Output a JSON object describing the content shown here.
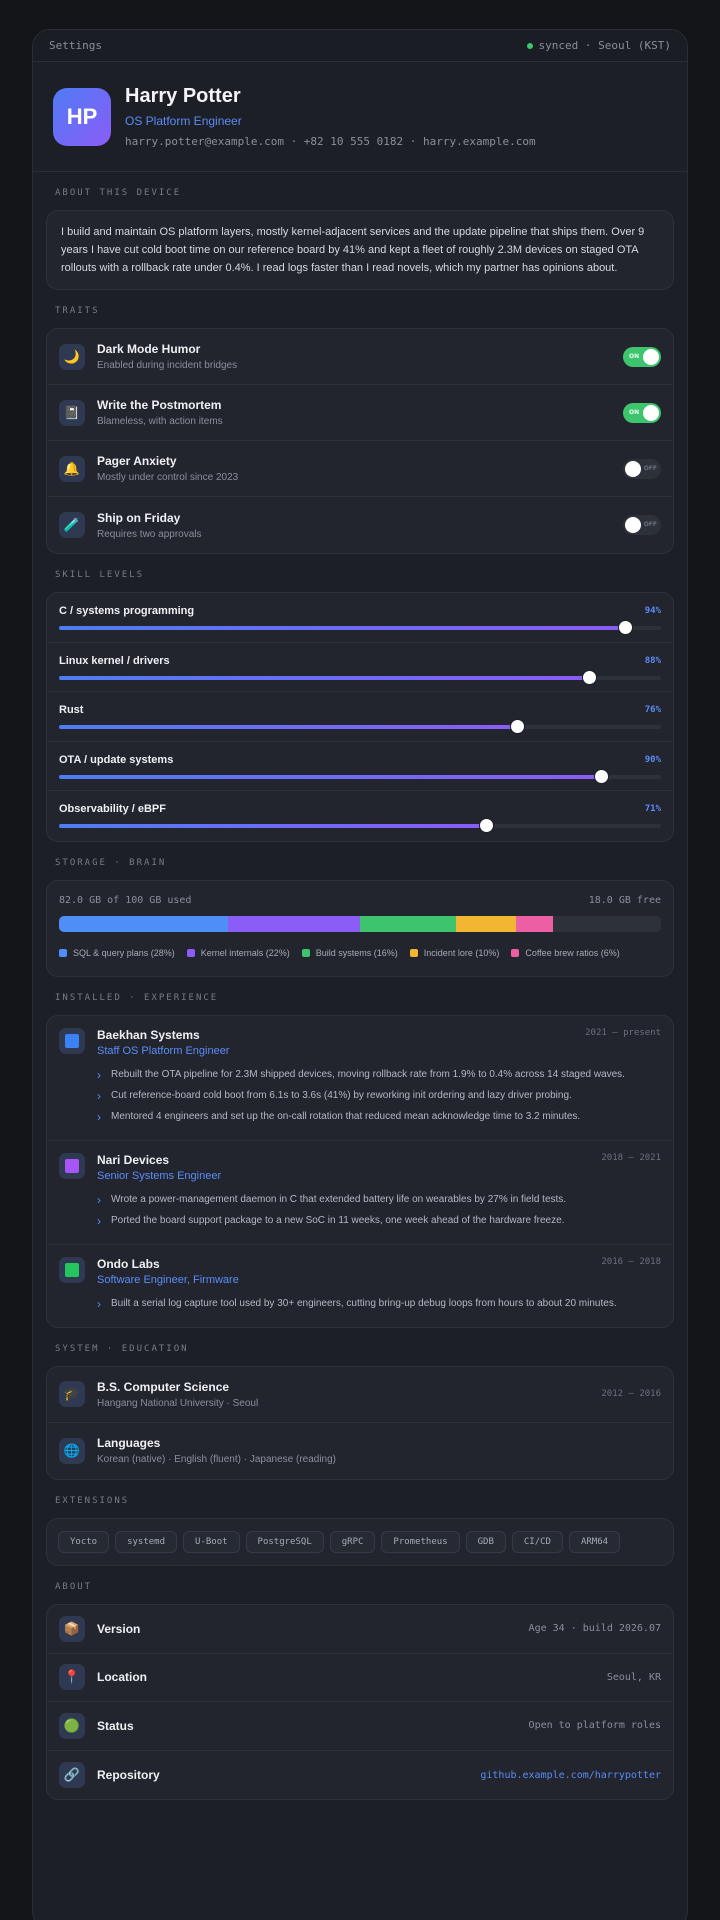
{
  "titlebar": {
    "title": "Settings",
    "status": "synced · Seoul (KST)"
  },
  "profile": {
    "initials": "HP",
    "name": "Harry Potter",
    "role": "OS Platform Engineer",
    "contact": "harry.potter@example.com · +82 10 555 0182 · harry.example.com"
  },
  "about_device": {
    "label": "ABOUT THIS DEVICE",
    "text": "I build and maintain OS platform layers, mostly kernel-adjacent services and the update pipeline that ships them. Over 9 years I have cut cold boot time on our reference board by 41% and kept a fleet of roughly 2.3M devices on staged OTA rollouts with a rollback rate under 0.4%. I read logs faster than I read novels, which my partner has opinions about."
  },
  "traits": {
    "label": "TRAITS",
    "items": [
      {
        "icon": "moon-icon",
        "glyph": "🌙",
        "title": "Dark Mode Humor",
        "sub": "Enabled during incident bridges",
        "on": true,
        "state": "ON"
      },
      {
        "icon": "notebook-icon",
        "glyph": "📓",
        "title": "Write the Postmortem",
        "sub": "Blameless, with action items",
        "on": true,
        "state": "ON"
      },
      {
        "icon": "bell-icon",
        "glyph": "🔔",
        "title": "Pager Anxiety",
        "sub": "Mostly under control since 2023",
        "on": false,
        "state": "OFF"
      },
      {
        "icon": "syringe-icon",
        "glyph": "🧪",
        "title": "Ship on Friday",
        "sub": "Requires two approvals",
        "on": false,
        "state": "OFF"
      }
    ]
  },
  "skills": {
    "label": "SKILL LEVELS",
    "items": [
      {
        "name": "C / systems programming",
        "value": 94,
        "pct": "94%"
      },
      {
        "name": "Linux kernel / drivers",
        "value": 88,
        "pct": "88%"
      },
      {
        "name": "Rust",
        "value": 76,
        "pct": "76%"
      },
      {
        "name": "OTA / update systems",
        "value": 90,
        "pct": "90%"
      },
      {
        "name": "Observability / eBPF",
        "value": 71,
        "pct": "71%"
      }
    ]
  },
  "storage": {
    "label": "STORAGE · BRAIN",
    "used": "82.0 GB of 100 GB used",
    "free": "18.0 GB free",
    "segments": [
      {
        "label": "SQL & query plans (28%)",
        "value": 28,
        "color": "#4f8ef7"
      },
      {
        "label": "Kernel internals (22%)",
        "value": 22,
        "color": "#8b5cf6"
      },
      {
        "label": "Build systems (16%)",
        "value": 16,
        "color": "#3ec46d"
      },
      {
        "label": "Incident lore (10%)",
        "value": 10,
        "color": "#f2b632"
      },
      {
        "label": "Coffee brew ratios (6%)",
        "value": 6,
        "color": "#ec5fa5"
      }
    ]
  },
  "experience": {
    "label": "INSTALLED · EXPERIENCE",
    "jobs": [
      {
        "icon": "blue-square-icon",
        "color": "#3b82f6",
        "company": "Baekhan Systems",
        "dates": "2021 – present",
        "role": "Staff OS Platform Engineer",
        "bullets": [
          "Rebuilt the OTA pipeline for 2.3M shipped devices, moving rollback rate from 1.9% to 0.4% across 14 staged waves.",
          "Cut reference-board cold boot from 6.1s to 3.6s (41%) by reworking init ordering and lazy driver probing.",
          "Mentored 4 engineers and set up the on-call rotation that reduced mean acknowledge time to 3.2 minutes."
        ]
      },
      {
        "icon": "purple-square-icon",
        "color": "#a855f7",
        "company": "Nari Devices",
        "dates": "2018 – 2021",
        "role": "Senior Systems Engineer",
        "bullets": [
          "Wrote a power-management daemon in C that extended battery life on wearables by 27% in field tests.",
          "Ported the board support package to a new SoC in 11 weeks, one week ahead of the hardware freeze."
        ]
      },
      {
        "icon": "green-square-icon",
        "color": "#22c55e",
        "company": "Ondo Labs",
        "dates": "2016 – 2018",
        "role": "Software Engineer, Firmware",
        "bullets": [
          "Built a serial log capture tool used by 30+ engineers, cutting bring-up debug loops from hours to about 20 minutes."
        ]
      }
    ]
  },
  "education": {
    "label": "SYSTEM · EDUCATION",
    "items": [
      {
        "icon": "graduation-cap-icon",
        "glyph": "🎓",
        "title": "B.S. Computer Science",
        "sub": "Hangang National University · Seoul",
        "dates": "2012 – 2016"
      },
      {
        "icon": "globe-icon",
        "glyph": "🌐",
        "title": "Languages",
        "sub": "Korean (native) · English (fluent) · Japanese (reading)",
        "dates": ""
      }
    ]
  },
  "extensions": {
    "label": "EXTENSIONS",
    "chips": [
      "Yocto",
      "systemd",
      "U-Boot",
      "PostgreSQL",
      "gRPC",
      "Prometheus",
      "GDB",
      "CI/CD",
      "ARM64"
    ]
  },
  "about": {
    "label": "ABOUT",
    "items": [
      {
        "icon": "package-icon",
        "glyph": "📦",
        "label": "Version",
        "value": "Age 34 · build 2026.07",
        "link": false
      },
      {
        "icon": "pin-icon",
        "glyph": "📍",
        "label": "Location",
        "value": "Seoul, KR",
        "link": false
      },
      {
        "icon": "status-dot-icon",
        "glyph": "🟢",
        "label": "Status",
        "value": "Open to platform roles",
        "link": false
      },
      {
        "icon": "link-icon",
        "glyph": "🔗",
        "label": "Repository",
        "value": "github.example.com/harrypotter",
        "link": true
      }
    ]
  }
}
